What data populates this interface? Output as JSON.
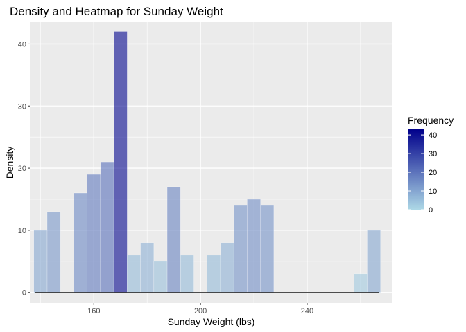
{
  "chart_data": {
    "type": "bar",
    "title": "Density and Heatmap for Sunday Weight",
    "xlabel": "Sunday Weight (lbs)",
    "ylabel": "Density",
    "xlim": [
      136,
      272
    ],
    "ylim": [
      -1.7,
      43.5
    ],
    "x_ticks": [
      160,
      200,
      240
    ],
    "y_ticks": [
      0,
      10,
      20,
      30,
      40
    ],
    "bin_width": 5,
    "grid": true,
    "legend_position": "right",
    "colors": {
      "low": "#add8e6",
      "high": "#00008b",
      "panel": "#ebebeb",
      "grid": "#ffffff",
      "baseline": "#333333"
    },
    "legend": {
      "title": "Frequency",
      "min": 0,
      "max": 43,
      "ticks": [
        0,
        10,
        20,
        30,
        40
      ]
    },
    "bins": [
      {
        "x": 140,
        "count": 10
      },
      {
        "x": 145,
        "count": 13
      },
      {
        "x": 150,
        "count": 0
      },
      {
        "x": 155,
        "count": 16
      },
      {
        "x": 160,
        "count": 19
      },
      {
        "x": 165,
        "count": 21
      },
      {
        "x": 170,
        "count": 42
      },
      {
        "x": 175,
        "count": 6
      },
      {
        "x": 180,
        "count": 8
      },
      {
        "x": 185,
        "count": 5
      },
      {
        "x": 190,
        "count": 17
      },
      {
        "x": 195,
        "count": 6
      },
      {
        "x": 200,
        "count": 0
      },
      {
        "x": 205,
        "count": 6
      },
      {
        "x": 210,
        "count": 8
      },
      {
        "x": 215,
        "count": 14
      },
      {
        "x": 220,
        "count": 15
      },
      {
        "x": 225,
        "count": 14
      },
      {
        "x": 230,
        "count": 0
      },
      {
        "x": 235,
        "count": 0
      },
      {
        "x": 240,
        "count": 0
      },
      {
        "x": 245,
        "count": 0
      },
      {
        "x": 250,
        "count": 0
      },
      {
        "x": 255,
        "count": 0
      },
      {
        "x": 260,
        "count": 3
      },
      {
        "x": 265,
        "count": 10
      }
    ],
    "density_line": {
      "x_start": 138,
      "x_end": 267,
      "y": 0
    }
  }
}
